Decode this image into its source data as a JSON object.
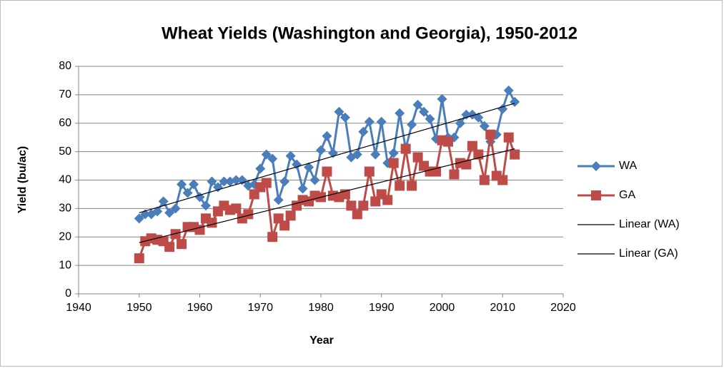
{
  "chart_data": {
    "type": "line",
    "title": "Wheat Yields (Washington and Georgia), 1950-2012",
    "xlabel": "Year",
    "ylabel": "Yield (bu/ac)",
    "x": [
      1950,
      1951,
      1952,
      1953,
      1954,
      1955,
      1956,
      1957,
      1958,
      1959,
      1960,
      1961,
      1962,
      1963,
      1964,
      1965,
      1966,
      1967,
      1968,
      1969,
      1970,
      1971,
      1972,
      1973,
      1974,
      1975,
      1976,
      1977,
      1978,
      1979,
      1980,
      1981,
      1982,
      1983,
      1984,
      1985,
      1986,
      1987,
      1988,
      1989,
      1990,
      1991,
      1992,
      1993,
      1994,
      1995,
      1996,
      1997,
      1998,
      1999,
      2000,
      2001,
      2002,
      2003,
      2004,
      2005,
      2006,
      2007,
      2008,
      2009,
      2010,
      2011,
      2012
    ],
    "series": [
      {
        "name": "WA",
        "color": "#4a7ebb",
        "marker": "diamond",
        "values": [
          26.5,
          28,
          28,
          29,
          32.5,
          28.5,
          30,
          38.5,
          35.5,
          38.5,
          34,
          31,
          39.5,
          37.5,
          39.5,
          39.5,
          40,
          40,
          38,
          38.5,
          44,
          49,
          47.5,
          33,
          39.5,
          48.5,
          45.5,
          37,
          44.5,
          40,
          50.5,
          55.5,
          49.5,
          64,
          62,
          48,
          49,
          57,
          60.5,
          49,
          60.5,
          46,
          49.5,
          63.5,
          51,
          59.5,
          66.5,
          64,
          61.5,
          54.5,
          68.5,
          55,
          55,
          60,
          63,
          63,
          62,
          59,
          53.5,
          56,
          65,
          71.5,
          67.5
        ]
      },
      {
        "name": "GA",
        "color": "#be4b48",
        "marker": "square",
        "values": [
          12.5,
          18.5,
          19.5,
          19,
          18.5,
          16.5,
          21,
          17.5,
          23.5,
          23.5,
          22.5,
          26.5,
          25,
          29,
          31,
          29.5,
          30,
          26.5,
          28,
          35,
          37.5,
          39,
          20,
          26.5,
          24,
          27.5,
          31,
          33,
          32.5,
          34.5,
          34,
          43,
          34.5,
          34,
          35,
          31,
          28,
          31,
          43,
          32.5,
          35,
          33,
          46,
          38,
          51,
          38,
          48,
          45,
          43,
          43,
          54,
          53.5,
          42,
          46,
          45.5,
          52,
          49,
          40,
          56,
          41.5,
          40,
          55,
          49
        ]
      },
      {
        "name": "Linear (WA)",
        "color": "#000000",
        "x": [
          1950,
          2012
        ],
        "values": [
          28.5,
          67
        ]
      },
      {
        "name": "Linear (GA)",
        "color": "#000000",
        "x": [
          1950,
          2012
        ],
        "values": [
          18,
          51
        ]
      }
    ],
    "xlim": [
      1940,
      2020
    ],
    "xticks": [
      1940,
      1950,
      1960,
      1970,
      1980,
      1990,
      2000,
      2010,
      2020
    ],
    "ylim": [
      0,
      80
    ],
    "yticks": [
      0,
      10,
      20,
      30,
      40,
      50,
      60,
      70,
      80
    ],
    "grid": true,
    "legend": "right"
  }
}
